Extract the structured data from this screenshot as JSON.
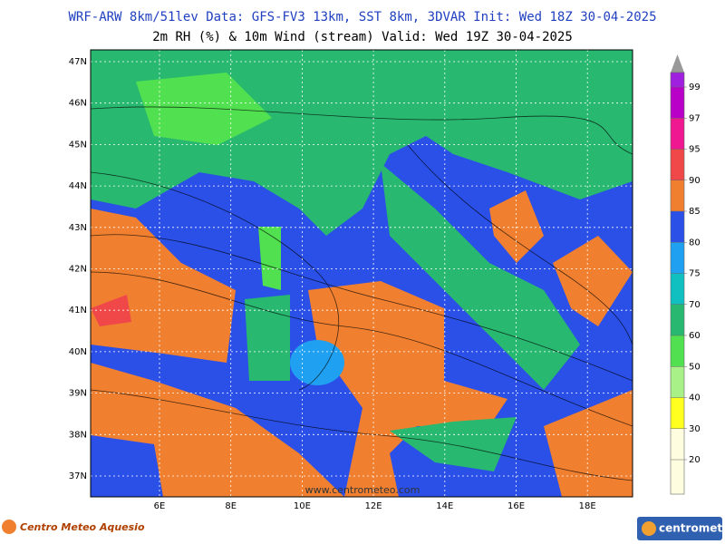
{
  "header": {
    "line1": "WRF-ARW 8km/51lev  Data: GFS-FV3 13km, SST 8km, 3DVAR  Init: Wed 18Z 30-04-2025",
    "line2": "2m RH (%) & 10m Wind (stream)  Valid: Wed 19Z 30-04-2025"
  },
  "map": {
    "latitudes": [
      "47N",
      "46N",
      "45N",
      "44N",
      "43N",
      "42N",
      "41N",
      "40N",
      "39N",
      "38N",
      "37N"
    ],
    "longitudes": [
      "6E",
      "8E",
      "10E",
      "12E",
      "14E",
      "16E",
      "18E"
    ],
    "watermark": "www.centrometeo.com"
  },
  "colorbar": {
    "levels": [
      20,
      30,
      40,
      50,
      60,
      70,
      75,
      80,
      85,
      90,
      95,
      97,
      99
    ],
    "colors": [
      "#fffde0",
      "#ffff20",
      "#a8f088",
      "#50e050",
      "#28b870",
      "#10c0c0",
      "#20a0f0",
      "#2a50e8",
      "#f08030",
      "#f04848",
      "#f01890",
      "#b800c8",
      "#a020e0"
    ]
  },
  "footer": {
    "left": "Centro Meteo Aquesio",
    "right": "centrometeo"
  }
}
